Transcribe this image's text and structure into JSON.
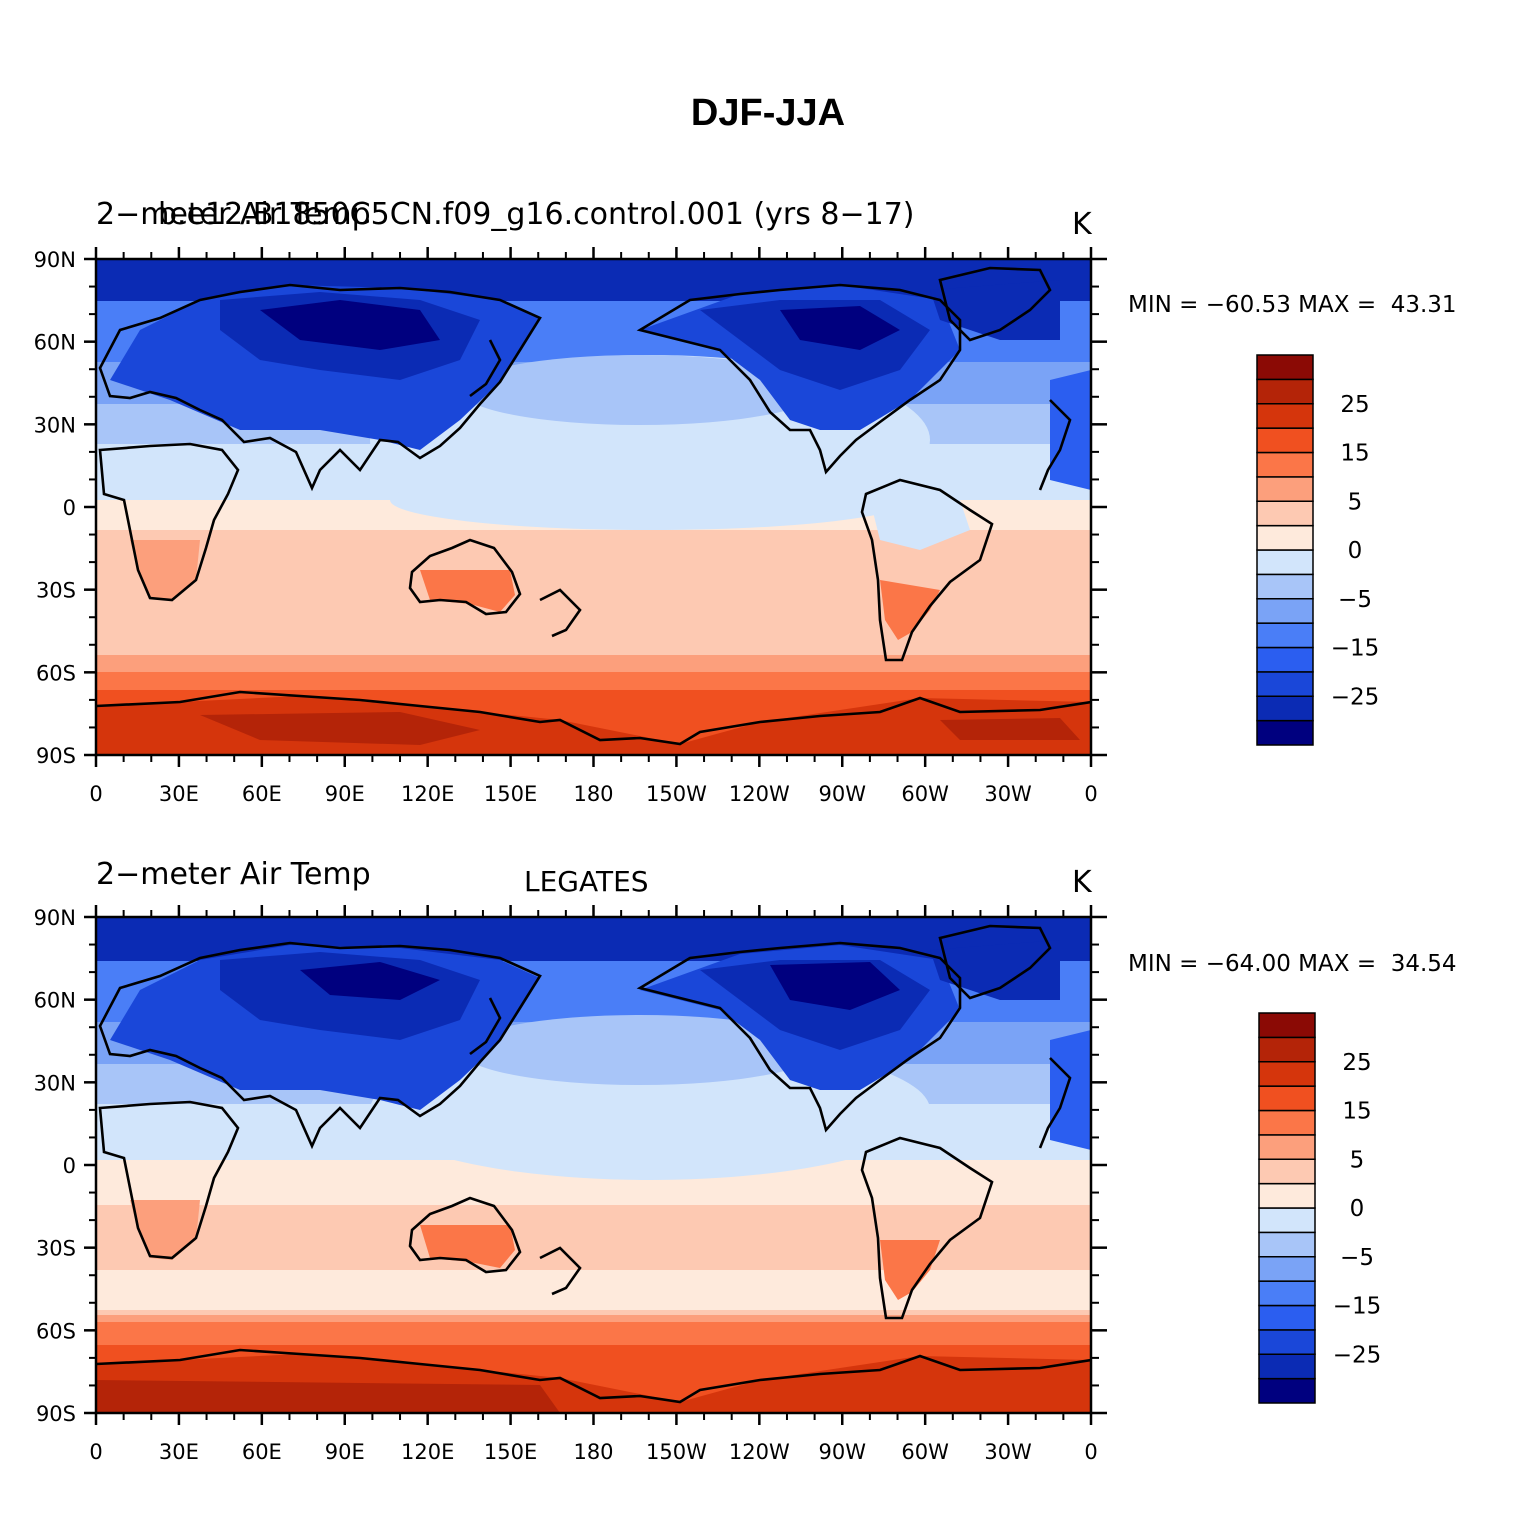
{
  "title": "DJF-JJA",
  "colorbar": {
    "colors": [
      "#00007f",
      "#0b2bb4",
      "#1a47d9",
      "#2b5ef0",
      "#4a7ef7",
      "#7aa3f6",
      "#a8c5f8",
      "#d2e5fb",
      "#feeadc",
      "#fdc9b2",
      "#fc9f7c",
      "#fb7648",
      "#f05020",
      "#d5350c",
      "#b42408",
      "#8b0a05"
    ],
    "labels": [
      "25",
      "15",
      "5",
      "0",
      "−5",
      "−15",
      "−25"
    ]
  },
  "longitude_labels": [
    "0",
    "30E",
    "60E",
    "90E",
    "120E",
    "150E",
    "180",
    "150W",
    "120W",
    "90W",
    "60W",
    "30W",
    "0"
  ],
  "latitude_labels": [
    "90N",
    "60N",
    "30N",
    "0",
    "30S",
    "60S",
    "90S"
  ],
  "panels": [
    {
      "title_left_a": "2−meter Air Temp",
      "title_left_b": "b.e12.B1850C5CN.f09_g16.control.001 (yrs 8−17)",
      "units": "K",
      "min_label": "MIN = ",
      "min_value": "−60.53",
      "max_label": "MAX = ",
      "max_value": "43.31"
    },
    {
      "title_left_a": "2−meter Air Temp",
      "title_center": "LEGATES",
      "units": "K",
      "min_label": "MIN = ",
      "min_value": "−64.00",
      "max_label": "MAX = ",
      "max_value": "34.54"
    }
  ]
}
